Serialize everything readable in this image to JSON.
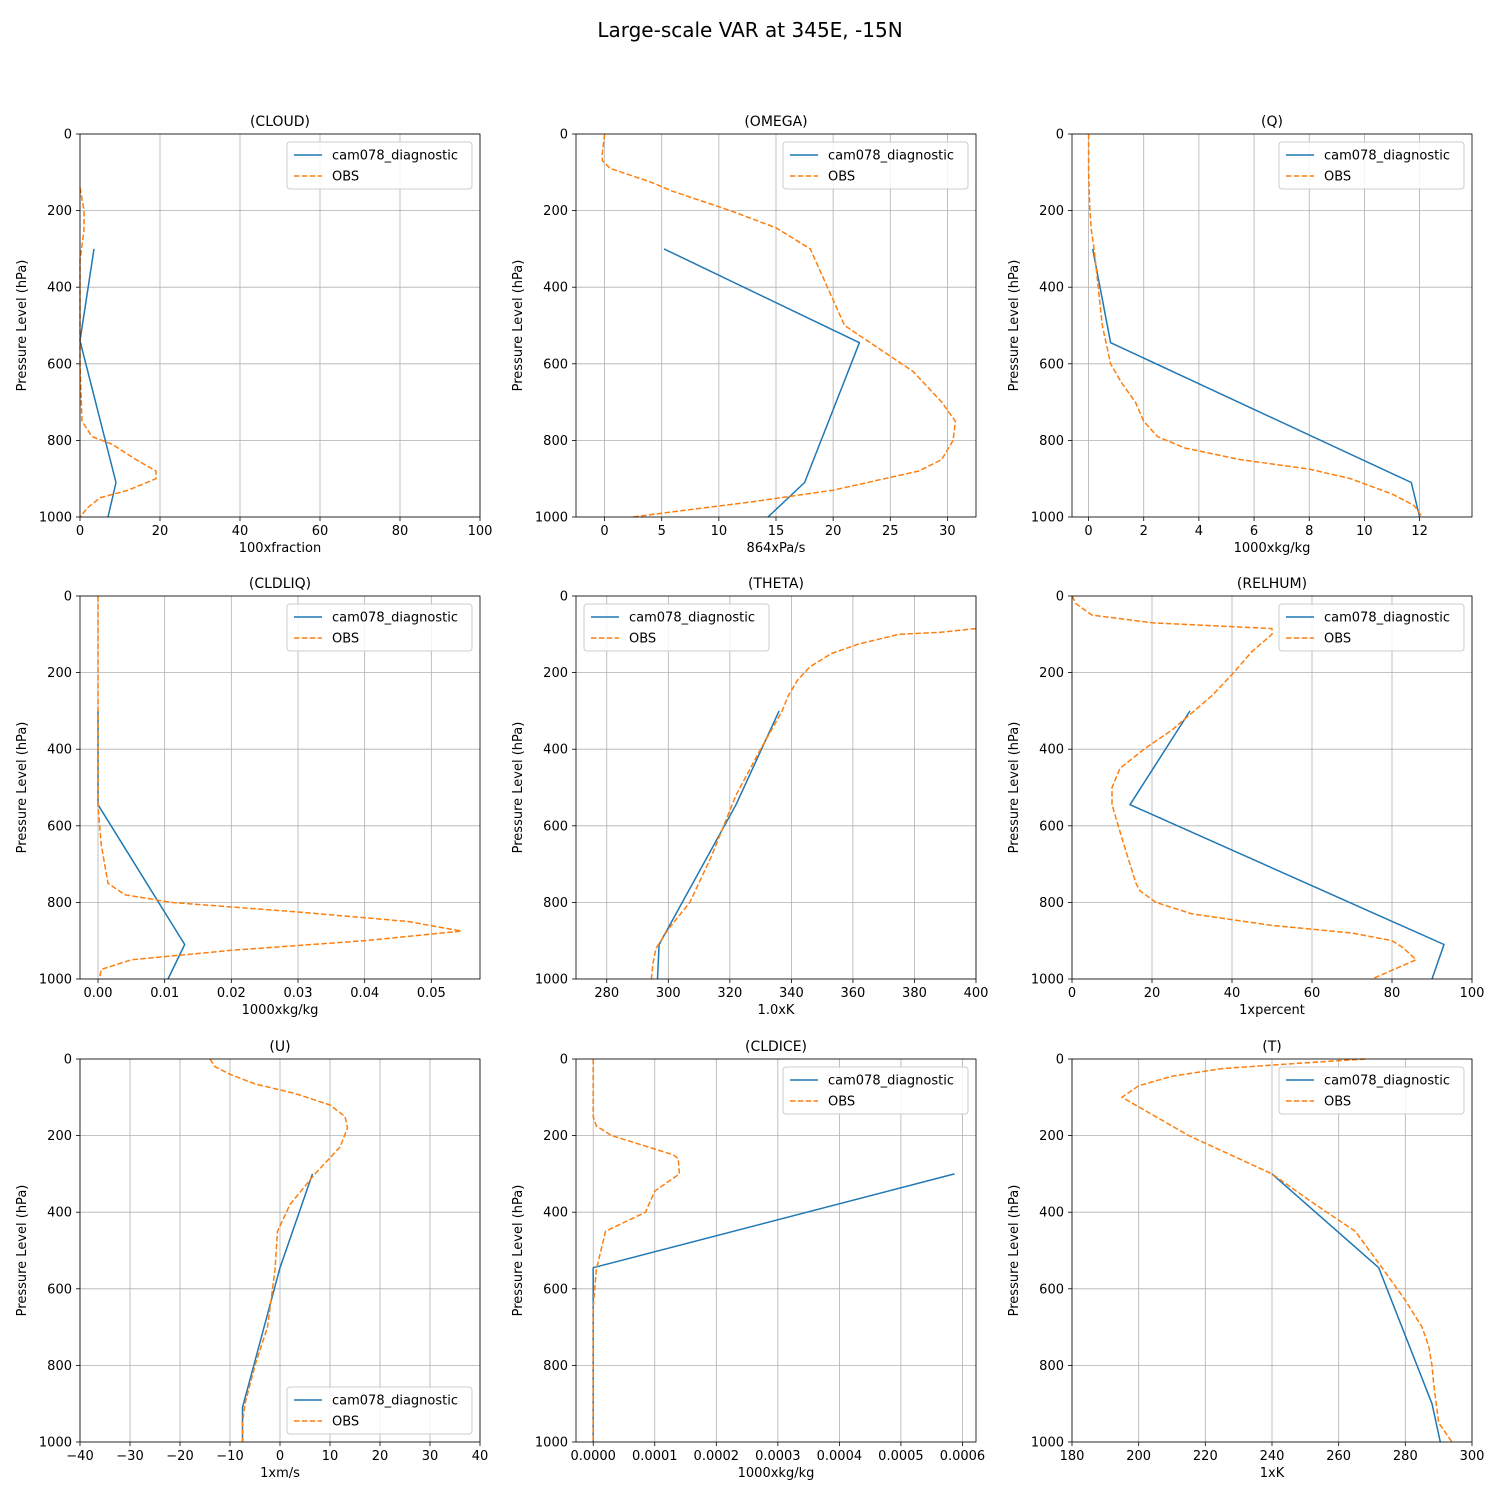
{
  "figure": {
    "title": "Large-scale VAR at 345E, -15N"
  },
  "colors": {
    "model": "#1f77b4",
    "obs": "#ff7f0e",
    "grid": "#b0b0b0"
  },
  "chart_data": [
    {
      "type": "line",
      "title": "(CLOUD)",
      "xlabel": "100xfraction",
      "ylabel": "Pressure Level (hPa)",
      "xlim": [
        0,
        100
      ],
      "ylim": [
        1000,
        0
      ],
      "xticks": [
        0,
        20,
        40,
        60,
        80,
        100
      ],
      "yticks": [
        0,
        200,
        400,
        600,
        800,
        1000
      ],
      "legend": "top-right",
      "series": [
        {
          "name": "cam078_diagnostic",
          "style": "solid",
          "x": [
            3.5,
            0,
            9,
            7
          ],
          "y": [
            300,
            540,
            910,
            1000
          ]
        },
        {
          "name": "OBS",
          "style": "dashed",
          "x": [
            0,
            1,
            1,
            0,
            0,
            0,
            0.5,
            3,
            8,
            14,
            19,
            19,
            12,
            5,
            2,
            0
          ],
          "y": [
            140,
            200,
            250,
            330,
            400,
            600,
            750,
            790,
            810,
            850,
            880,
            900,
            930,
            950,
            975,
            1000
          ]
        }
      ]
    },
    {
      "type": "line",
      "title": "(OMEGA)",
      "xlabel": "864xPa/s",
      "ylabel": "Pressure Level (hPa)",
      "xlim": [
        -2.5,
        32.5
      ],
      "ylim": [
        1000,
        0
      ],
      "xticks": [
        0,
        5,
        10,
        15,
        20,
        25,
        30
      ],
      "yticks": [
        0,
        200,
        400,
        600,
        800,
        1000
      ],
      "legend": "top-right",
      "series": [
        {
          "name": "cam078_diagnostic",
          "style": "solid",
          "x": [
            5.2,
            22.3,
            17.5,
            14.3
          ],
          "y": [
            300,
            545,
            910,
            1000
          ]
        },
        {
          "name": "OBS",
          "style": "dashed",
          "x": [
            0,
            -0.2,
            -0.2,
            0.5,
            1.5,
            4,
            6,
            8,
            11,
            15,
            18,
            19.5,
            21,
            24,
            27,
            29.5,
            30.7,
            30.5,
            29.5,
            27.5,
            24.5,
            20,
            13,
            5,
            2.5
          ],
          "y": [
            0,
            50,
            70,
            90,
            100,
            125,
            150,
            170,
            200,
            245,
            300,
            400,
            500,
            560,
            620,
            700,
            750,
            800,
            850,
            880,
            900,
            930,
            960,
            990,
            1000
          ]
        }
      ]
    },
    {
      "type": "line",
      "title": "(Q)",
      "xlabel": "1000xkg/kg",
      "ylabel": "Pressure Level (hPa)",
      "xlim": [
        -0.6,
        13.9
      ],
      "ylim": [
        1000,
        0
      ],
      "xticks": [
        0,
        2,
        4,
        6,
        8,
        10,
        12
      ],
      "yticks": [
        0,
        200,
        400,
        600,
        800,
        1000
      ],
      "legend": "top-right",
      "series": [
        {
          "name": "cam078_diagnostic",
          "style": "solid",
          "x": [
            0.15,
            0.8,
            11.7,
            12
          ],
          "y": [
            300,
            545,
            910,
            1000
          ]
        },
        {
          "name": "OBS",
          "style": "dashed",
          "x": [
            0,
            0,
            0.05,
            0.1,
            0.2,
            0.35,
            0.5,
            0.8,
            1.2,
            1.7,
            2.0,
            2.5,
            3.5,
            5.5,
            8,
            9.5,
            11,
            11.8,
            12.1
          ],
          "y": [
            0,
            100,
            200,
            250,
            300,
            400,
            500,
            600,
            650,
            700,
            750,
            790,
            820,
            850,
            875,
            900,
            940,
            970,
            1000
          ]
        }
      ]
    },
    {
      "type": "line",
      "title": "(CLDLIQ)",
      "xlabel": "1000xkg/kg",
      "ylabel": "Pressure Level (hPa)",
      "xlim": [
        -0.0027,
        0.0573
      ],
      "ylim": [
        1000,
        0
      ],
      "xticks": [
        0.0,
        0.01,
        0.02,
        0.03,
        0.04,
        0.05
      ],
      "yticks": [
        0,
        200,
        400,
        600,
        800,
        1000
      ],
      "legend": "top-right",
      "series": [
        {
          "name": "cam078_diagnostic",
          "style": "solid",
          "x": [
            0,
            0,
            0.013,
            0.0105
          ],
          "y": [
            300,
            545,
            910,
            1000
          ]
        },
        {
          "name": "OBS",
          "style": "dashed",
          "x": [
            0,
            0,
            0,
            0.0005,
            0.0015,
            0.004,
            0.011,
            0.03,
            0.0465,
            0.0545,
            0.04,
            0.02,
            0.005,
            0.0005,
            0.0002
          ],
          "y": [
            0,
            300,
            550,
            650,
            750,
            780,
            800,
            825,
            850,
            875,
            900,
            925,
            950,
            975,
            1000
          ]
        }
      ]
    },
    {
      "type": "line",
      "title": "(THETA)",
      "xlabel": "1.0xK",
      "ylabel": "Pressure Level (hPa)",
      "xlim": [
        270,
        400
      ],
      "ylim": [
        1000,
        0
      ],
      "xticks": [
        280,
        300,
        320,
        340,
        360,
        380,
        400
      ],
      "yticks": [
        0,
        200,
        400,
        600,
        800,
        1000
      ],
      "legend": "top-left",
      "series": [
        {
          "name": "cam078_diagnostic",
          "style": "solid",
          "x": [
            336,
            322,
            297,
            296.5
          ],
          "y": [
            300,
            545,
            910,
            1000
          ]
        },
        {
          "name": "OBS",
          "style": "dashed",
          "x": [
            400,
            388,
            375,
            362,
            353,
            346,
            342,
            339,
            337,
            330,
            322,
            314,
            307,
            300,
            296,
            295,
            294.5
          ],
          "y": [
            85,
            95,
            100,
            125,
            150,
            185,
            220,
            260,
            300,
            400,
            520,
            680,
            800,
            870,
            920,
            960,
            1000
          ]
        }
      ]
    },
    {
      "type": "line",
      "title": "(RELHUM)",
      "xlabel": "1xpercent",
      "ylabel": "Pressure Level (hPa)",
      "xlim": [
        0,
        100
      ],
      "ylim": [
        1000,
        0
      ],
      "xticks": [
        0,
        20,
        40,
        60,
        80,
        100
      ],
      "yticks": [
        0,
        200,
        400,
        600,
        800,
        1000
      ],
      "legend": "top-right",
      "series": [
        {
          "name": "cam078_diagnostic",
          "style": "solid",
          "x": [
            29.5,
            14.5,
            93,
            90
          ],
          "y": [
            300,
            545,
            910,
            1000
          ]
        },
        {
          "name": "OBS",
          "style": "dashed",
          "x": [
            0,
            1,
            5,
            20,
            50,
            50,
            45,
            40,
            35,
            25,
            18,
            12,
            10,
            10,
            13,
            16,
            17,
            21,
            30,
            50,
            70,
            80,
            83,
            86,
            75
          ],
          "y": [
            0,
            20,
            50,
            70,
            85,
            100,
            145,
            205,
            260,
            350,
            400,
            450,
            500,
            545,
            650,
            750,
            770,
            800,
            830,
            860,
            880,
            900,
            920,
            950,
            1000
          ]
        }
      ]
    },
    {
      "type": "line",
      "title": "(U)",
      "xlabel": "1xm/s",
      "ylabel": "Pressure Level (hPa)",
      "xlim": [
        -40,
        40
      ],
      "ylim": [
        1000,
        0
      ],
      "xticks": [
        -40,
        -30,
        -20,
        -10,
        0,
        10,
        20,
        30,
        40
      ],
      "yticks": [
        0,
        200,
        400,
        600,
        800,
        1000
      ],
      "legend": "bottom-right",
      "series": [
        {
          "name": "cam078_diagnostic",
          "style": "solid",
          "x": [
            6.5,
            0,
            -7.5,
            -7.5
          ],
          "y": [
            300,
            545,
            910,
            1000
          ]
        },
        {
          "name": "OBS",
          "style": "dashed",
          "x": [
            -14,
            -13,
            -10,
            -5,
            3,
            10,
            13,
            13.5,
            12,
            7,
            2,
            -0.5,
            -1,
            -2.5,
            -5,
            -7,
            -7.5,
            -7.5
          ],
          "y": [
            0,
            20,
            40,
            65,
            90,
            120,
            150,
            180,
            230,
            300,
            380,
            450,
            550,
            700,
            800,
            900,
            950,
            1000
          ]
        }
      ]
    },
    {
      "type": "line",
      "title": "(CLDICE)",
      "xlabel": "1000xkg/kg",
      "ylabel": "Pressure Level (hPa)",
      "xlim": [
        -2.8e-05,
        0.000622
      ],
      "ylim": [
        1000,
        0
      ],
      "xticks": [
        0.0,
        0.0001,
        0.0002,
        0.0003,
        0.0004,
        0.0005,
        0.0006
      ],
      "yticks": [
        0,
        200,
        400,
        600,
        800,
        1000
      ],
      "legend": "top-right",
      "series": [
        {
          "name": "cam078_diagnostic",
          "style": "solid",
          "x": [
            0.000587,
            0.0,
            0.0
          ],
          "y": [
            300,
            545,
            1000
          ]
        },
        {
          "name": "OBS",
          "style": "dashed",
          "x": [
            0,
            0,
            5e-06,
            3e-05,
            0.00013,
            0.000138,
            0.00014,
            0.0001,
            8.5e-05,
            2e-05,
            5e-06,
            0,
            0
          ],
          "y": [
            0,
            150,
            175,
            200,
            250,
            260,
            300,
            345,
            400,
            450,
            550,
            650,
            1000
          ]
        }
      ]
    },
    {
      "type": "line",
      "title": "(T)",
      "xlabel": "1xK",
      "ylabel": "Pressure Level (hPa)",
      "xlim": [
        180,
        300
      ],
      "ylim": [
        1000,
        0
      ],
      "xticks": [
        180,
        200,
        220,
        240,
        260,
        280,
        300
      ],
      "yticks": [
        0,
        200,
        400,
        600,
        800,
        1000
      ],
      "legend": "top-right",
      "series": [
        {
          "name": "cam078_diagnostic",
          "style": "solid",
          "x": [
            240,
            272,
            288,
            290.5
          ],
          "y": [
            300,
            545,
            900,
            1000
          ]
        },
        {
          "name": "OBS",
          "style": "dashed",
          "x": [
            268,
            250,
            225,
            210,
            200,
            195,
            203,
            215,
            230,
            240,
            253,
            265,
            273,
            280,
            285,
            287,
            288,
            288.5,
            290,
            294
          ],
          "y": [
            0,
            10,
            25,
            45,
            70,
            100,
            140,
            200,
            260,
            300,
            380,
            450,
            545,
            630,
            700,
            750,
            800,
            850,
            950,
            1000
          ]
        }
      ]
    }
  ]
}
